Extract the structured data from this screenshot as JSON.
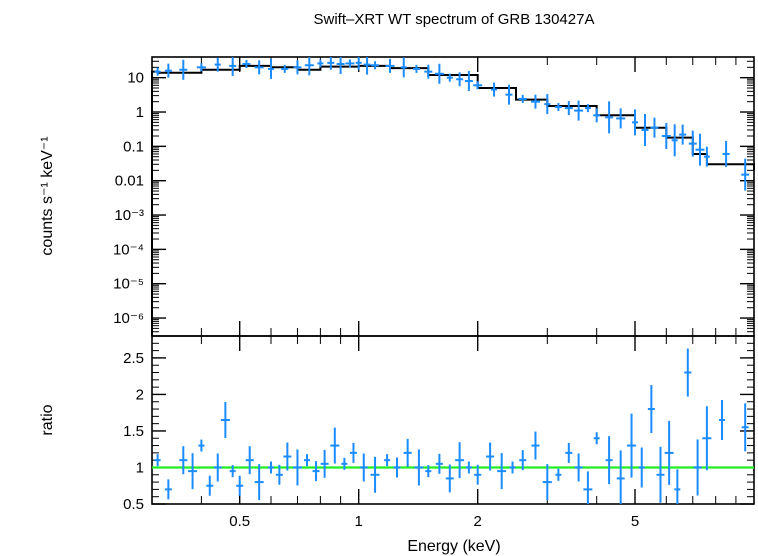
{
  "chart_data": [
    {
      "type": "scatter",
      "panel": "spectrum",
      "title": "Swift–XRT WT spectrum of GRB 130427A",
      "ylabel": "counts s⁻¹ keV⁻¹",
      "x_scale": "log",
      "y_scale": "log",
      "xlim": [
        0.3,
        10
      ],
      "ylim": [
        3e-07,
        40
      ],
      "y_ticks": [
        {
          "v": 10,
          "label": "10"
        },
        {
          "v": 1,
          "label": "1"
        },
        {
          "v": 0.1,
          "label": "0.1"
        },
        {
          "v": 0.01,
          "label": "0.01"
        },
        {
          "v": 0.001,
          "label": "10⁻³"
        },
        {
          "v": 0.0001,
          "label": "10⁻⁴"
        },
        {
          "v": 1e-05,
          "label": "10⁻⁵"
        },
        {
          "v": 1e-06,
          "label": "10⁻⁶"
        }
      ],
      "model": {
        "x": [
          0.3,
          0.31,
          0.4,
          0.5,
          0.6,
          0.7,
          0.8,
          1.0,
          1.2,
          1.5,
          2.0,
          2.5,
          3.0,
          4.0,
          5.0,
          6.0,
          7.0,
          7.6,
          8.5,
          10.0
        ],
        "y": [
          15,
          14,
          17,
          22,
          20,
          17,
          21,
          22,
          19,
          12,
          5,
          2.3,
          1.5,
          0.8,
          0.35,
          0.18,
          0.06,
          0.03,
          0.03,
          0.02
        ]
      },
      "points": {
        "x": [
          0.31,
          0.33,
          0.36,
          0.4,
          0.44,
          0.48,
          0.52,
          0.56,
          0.6,
          0.65,
          0.7,
          0.75,
          0.8,
          0.85,
          0.9,
          0.95,
          1.0,
          1.05,
          1.1,
          1.2,
          1.3,
          1.4,
          1.5,
          1.6,
          1.7,
          1.8,
          1.9,
          2.0,
          2.2,
          2.4,
          2.6,
          2.8,
          3.0,
          3.2,
          3.4,
          3.6,
          3.8,
          4.0,
          4.3,
          4.6,
          5.0,
          5.3,
          5.6,
          6.0,
          6.3,
          6.6,
          7.0,
          7.3,
          7.6,
          8.5,
          9.5
        ],
        "y": [
          15,
          16,
          17,
          20,
          24,
          22,
          25,
          20,
          18,
          18,
          20,
          23,
          26,
          27,
          25,
          26,
          27,
          24,
          23,
          22,
          20,
          18,
          15,
          13,
          10,
          9,
          8,
          6,
          4.5,
          3.2,
          2.4,
          2.0,
          1.7,
          1.4,
          1.3,
          1.1,
          1.3,
          0.8,
          0.7,
          0.65,
          0.5,
          0.3,
          0.35,
          0.2,
          0.15,
          0.22,
          0.12,
          0.08,
          0.05,
          0.06,
          0.015
        ]
      },
      "series_color": "#1a8cff",
      "model_color": "#000000"
    },
    {
      "type": "scatter",
      "panel": "ratio",
      "xlabel": "Energy (keV)",
      "ylabel": "ratio",
      "x_scale": "log",
      "xlim": [
        0.3,
        10
      ],
      "ylim": [
        0.5,
        2.8
      ],
      "x_ticks": [
        {
          "v": 0.5,
          "label": "0.5"
        },
        {
          "v": 1,
          "label": "1"
        },
        {
          "v": 2,
          "label": "2"
        },
        {
          "v": 5,
          "label": "5"
        }
      ],
      "y_ticks": [
        {
          "v": 0.5,
          "label": "0.5"
        },
        {
          "v": 1,
          "label": "1"
        },
        {
          "v": 1.5,
          "label": "1.5"
        },
        {
          "v": 2,
          "label": "2"
        },
        {
          "v": 2.5,
          "label": "2.5"
        }
      ],
      "reference_line": 1,
      "reference_color": "#22ee22",
      "points": {
        "x": [
          0.31,
          0.33,
          0.36,
          0.38,
          0.4,
          0.42,
          0.44,
          0.46,
          0.48,
          0.5,
          0.53,
          0.56,
          0.6,
          0.63,
          0.66,
          0.7,
          0.74,
          0.78,
          0.82,
          0.87,
          0.92,
          0.97,
          1.03,
          1.1,
          1.18,
          1.25,
          1.33,
          1.42,
          1.5,
          1.6,
          1.7,
          1.8,
          1.9,
          2.0,
          2.15,
          2.3,
          2.45,
          2.6,
          2.8,
          3.0,
          3.2,
          3.4,
          3.6,
          3.8,
          4.0,
          4.3,
          4.6,
          4.9,
          5.2,
          5.5,
          5.8,
          6.1,
          6.4,
          6.8,
          7.2,
          7.6,
          8.3,
          9.5
        ],
        "y": [
          1.1,
          0.7,
          1.1,
          0.95,
          1.3,
          0.75,
          1.0,
          1.65,
          0.95,
          0.75,
          1.1,
          0.8,
          1.0,
          0.9,
          1.15,
          1.0,
          1.1,
          0.95,
          1.05,
          1.3,
          1.05,
          1.2,
          1.0,
          0.9,
          1.1,
          1.0,
          1.2,
          1.0,
          0.95,
          1.05,
          0.85,
          1.1,
          1.0,
          0.9,
          1.15,
          0.95,
          1.0,
          1.1,
          1.3,
          0.8,
          0.9,
          1.2,
          1.0,
          0.7,
          1.4,
          1.1,
          0.85,
          1.3,
          1.0,
          1.8,
          0.9,
          1.2,
          0.7,
          2.3,
          1.0,
          1.4,
          1.65,
          1.55
        ]
      },
      "series_color": "#1a8cff"
    }
  ]
}
